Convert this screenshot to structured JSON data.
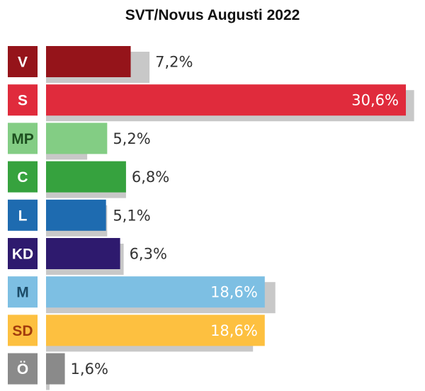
{
  "chart_data": {
    "type": "bar",
    "title": "SVT/Novus Augusti 2022",
    "categories": [
      "V",
      "S",
      "MP",
      "C",
      "L",
      "KD",
      "M",
      "SD",
      "Ö"
    ],
    "series": [
      {
        "values": [
          7.2,
          30.6,
          5.2,
          6.8,
          5.1,
          6.3,
          18.6,
          18.6,
          1.6
        ]
      },
      {
        "values": [
          8.8,
          31.3,
          3.5,
          6.8,
          5.2,
          6.6,
          19.5,
          17.6,
          0.3
        ]
      }
    ],
    "value_labels": [
      "7,2%",
      "30,6%",
      "5,2%",
      "6,8%",
      "5,1%",
      "6,3%",
      "18,6%",
      "18,6%",
      "1,6%"
    ],
    "colors": [
      "#95141a",
      "#e02b3c",
      "#83cd84",
      "#36a23e",
      "#1e6bb0",
      "#2e1a6e",
      "#7dbfe3",
      "#fdc040",
      "#8a8a8a"
    ],
    "label_text_colors": [
      "#ffffff",
      "#ffffff",
      "#1d4f1f",
      "#ffffff",
      "#ffffff",
      "#ffffff",
      "#1b4a66",
      "#a33c0d",
      "#ffffff"
    ],
    "value_label_colors_inside": [
      "#ffffff",
      "#ffffff",
      "#ffffff",
      "#ffffff",
      "#ffffff",
      "#ffffff",
      "#ffffff",
      "#ffffff",
      "#ffffff"
    ],
    "shadow_color": "#c8c8c8",
    "xlim": [
      0,
      31
    ],
    "grid": false,
    "legend": "none"
  }
}
